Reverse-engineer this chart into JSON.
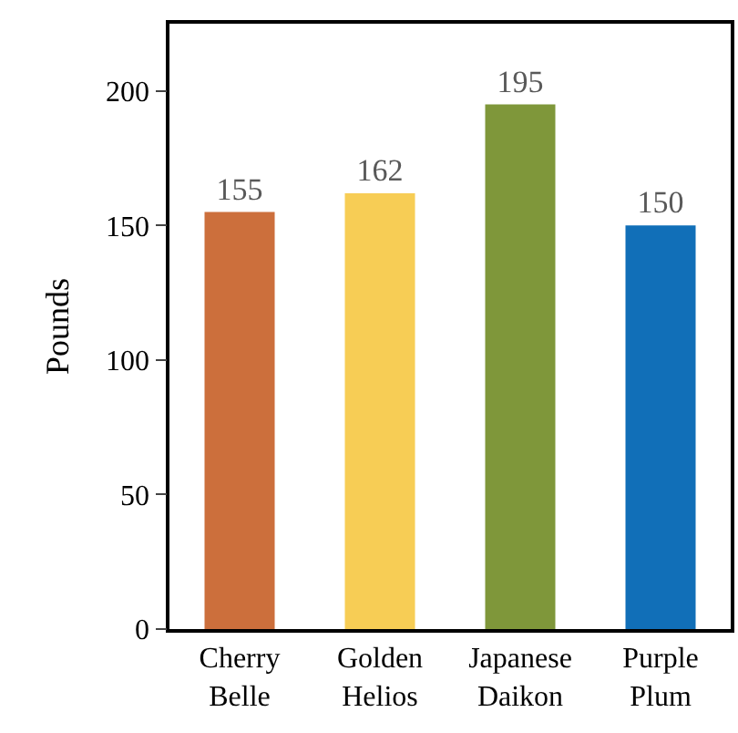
{
  "chart_data": {
    "type": "bar",
    "ylabel": "Pounds",
    "categories": [
      "Cherry Belle",
      "Golden Helios",
      "Japanese Daikon",
      "Purple Plum"
    ],
    "values": [
      155,
      162,
      195,
      150
    ],
    "colors": [
      "#cc6f3c",
      "#f7cd55",
      "#7f973a",
      "#116fb8"
    ],
    "ylim": [
      0,
      225
    ],
    "yticks": [
      0,
      50,
      100,
      150,
      200
    ],
    "legend": false,
    "data_labels": true
  }
}
